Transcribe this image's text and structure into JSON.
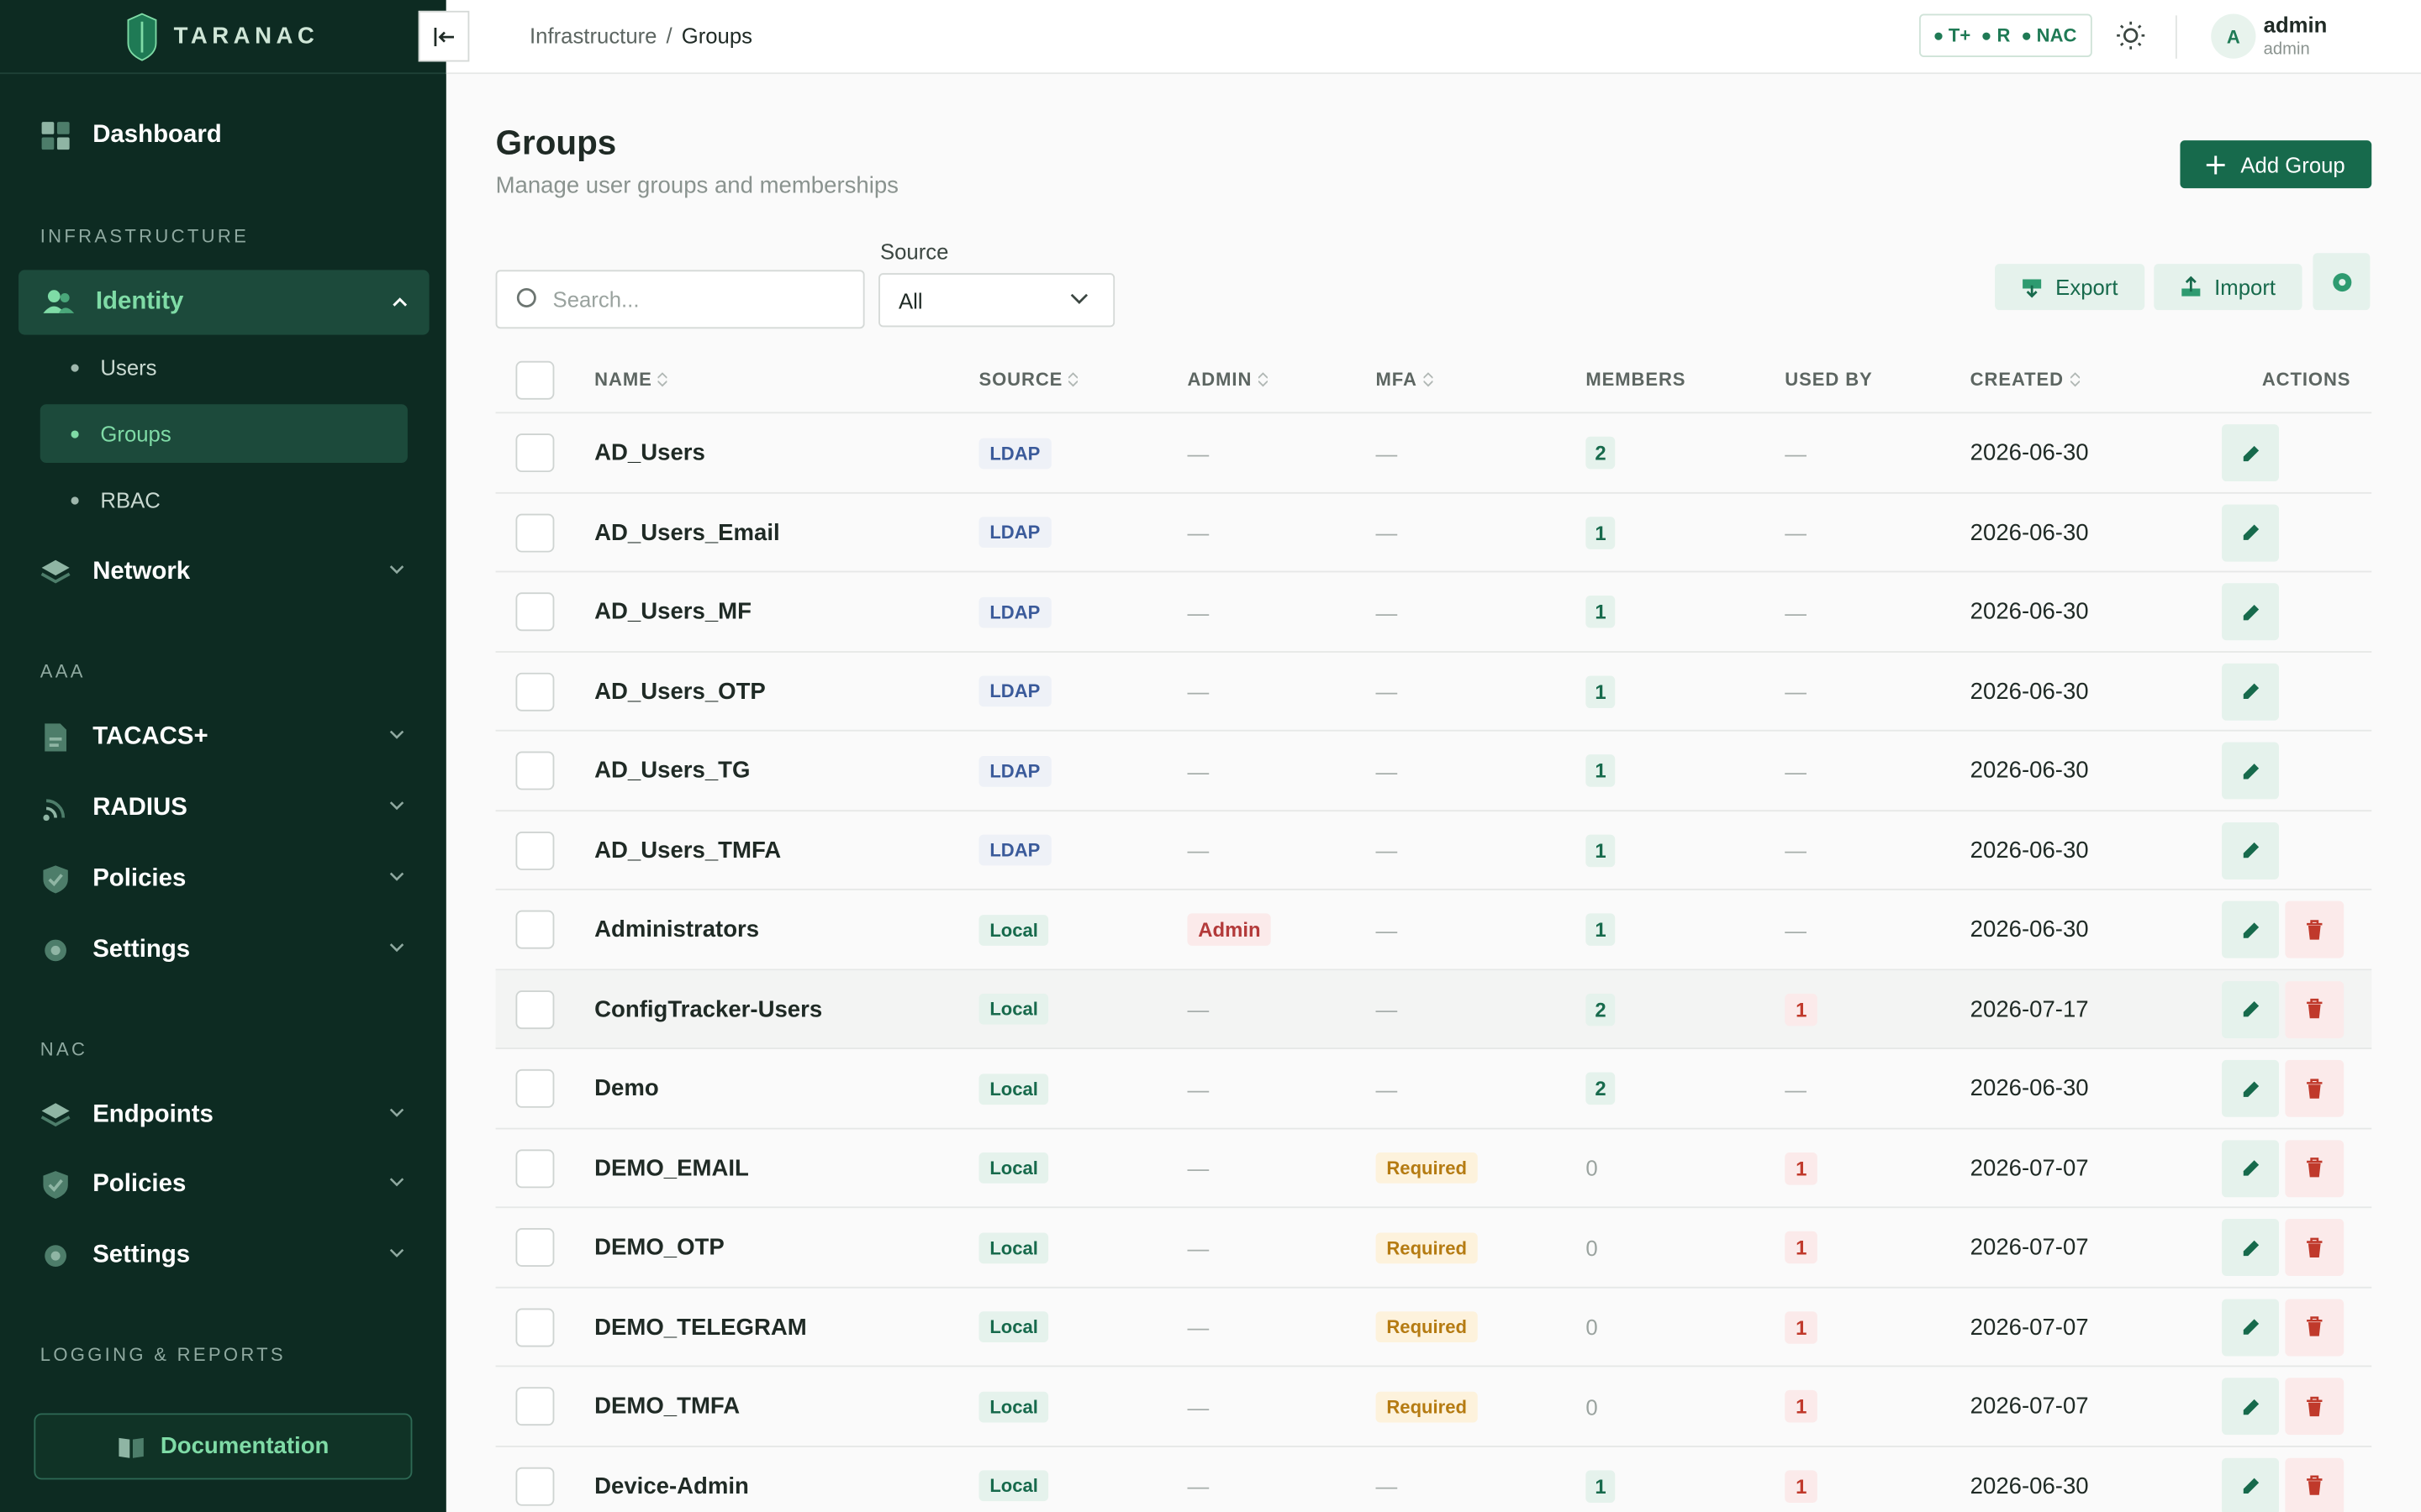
{
  "app": {
    "brand": "TARANAC"
  },
  "sidebar": {
    "dashboard": "Dashboard",
    "sections": {
      "infrastructure": "INFRASTRUCTURE",
      "aaa": "AAA",
      "nac": "NAC",
      "logging": "LOGGING & REPORTS"
    },
    "identity": "Identity",
    "identity_items": [
      "Users",
      "Groups",
      "RBAC"
    ],
    "network": "Network",
    "aaa_items": [
      "TACACS+",
      "RADIUS",
      "Policies",
      "Settings"
    ],
    "nac_items": [
      "Endpoints",
      "Policies",
      "Settings"
    ],
    "documentation": "Documentation"
  },
  "header": {
    "breadcrumb": [
      "Infrastructure",
      "Groups"
    ],
    "breadcrumb_sep": "/",
    "protocols": [
      "T+",
      "R",
      "NAC"
    ],
    "user_initial": "A",
    "user_name": "admin",
    "user_role": "admin"
  },
  "page": {
    "title": "Groups",
    "subtitle": "Manage user groups and memberships",
    "add_button": "Add Group",
    "search_placeholder": "Search...",
    "source_label": "Source",
    "source_value": "All",
    "export": "Export",
    "import": "Import"
  },
  "table": {
    "columns": {
      "name": "NAME",
      "source": "SOURCE",
      "admin": "ADMIN",
      "mfa": "MFA",
      "members": "MEMBERS",
      "used_by": "USED BY",
      "created": "CREATED",
      "actions": "ACTIONS"
    },
    "dash": "—",
    "rows": [
      {
        "name": "AD_Users",
        "source": "LDAP",
        "admin": "",
        "mfa": "",
        "members": "2",
        "used_by": "",
        "created": "2026-06-30",
        "deletable": false
      },
      {
        "name": "AD_Users_Email",
        "source": "LDAP",
        "admin": "",
        "mfa": "",
        "members": "1",
        "used_by": "",
        "created": "2026-06-30",
        "deletable": false
      },
      {
        "name": "AD_Users_MF",
        "source": "LDAP",
        "admin": "",
        "mfa": "",
        "members": "1",
        "used_by": "",
        "created": "2026-06-30",
        "deletable": false
      },
      {
        "name": "AD_Users_OTP",
        "source": "LDAP",
        "admin": "",
        "mfa": "",
        "members": "1",
        "used_by": "",
        "created": "2026-06-30",
        "deletable": false
      },
      {
        "name": "AD_Users_TG",
        "source": "LDAP",
        "admin": "",
        "mfa": "",
        "members": "1",
        "used_by": "",
        "created": "2026-06-30",
        "deletable": false
      },
      {
        "name": "AD_Users_TMFA",
        "source": "LDAP",
        "admin": "",
        "mfa": "",
        "members": "1",
        "used_by": "",
        "created": "2026-06-30",
        "deletable": false
      },
      {
        "name": "Administrators",
        "source": "Local",
        "admin": "Admin",
        "mfa": "",
        "members": "1",
        "used_by": "",
        "created": "2026-06-30",
        "deletable": true
      },
      {
        "name": "ConfigTracker-Users",
        "source": "Local",
        "admin": "",
        "mfa": "",
        "members": "2",
        "used_by": "1",
        "created": "2026-07-17",
        "deletable": true
      },
      {
        "name": "Demo",
        "source": "Local",
        "admin": "",
        "mfa": "",
        "members": "2",
        "used_by": "",
        "created": "2026-06-30",
        "deletable": true
      },
      {
        "name": "DEMO_EMAIL",
        "source": "Local",
        "admin": "",
        "mfa": "Required",
        "members": "0",
        "used_by": "1",
        "created": "2026-07-07",
        "deletable": true
      },
      {
        "name": "DEMO_OTP",
        "source": "Local",
        "admin": "",
        "mfa": "Required",
        "members": "0",
        "used_by": "1",
        "created": "2026-07-07",
        "deletable": true
      },
      {
        "name": "DEMO_TELEGRAM",
        "source": "Local",
        "admin": "",
        "mfa": "Required",
        "members": "0",
        "used_by": "1",
        "created": "2026-07-07",
        "deletable": true
      },
      {
        "name": "DEMO_TMFA",
        "source": "Local",
        "admin": "",
        "mfa": "Required",
        "members": "0",
        "used_by": "1",
        "created": "2026-07-07",
        "deletable": true
      },
      {
        "name": "Device-Admin",
        "source": "Local",
        "admin": "",
        "mfa": "",
        "members": "1",
        "used_by": "1",
        "created": "2026-06-30",
        "deletable": true
      }
    ]
  },
  "colors": {
    "sidebar_bg": "#0d2b22",
    "accent": "#176a4c",
    "accent_light": "#7fdba6",
    "danger": "#c0392b",
    "warning": "#b57b12"
  }
}
